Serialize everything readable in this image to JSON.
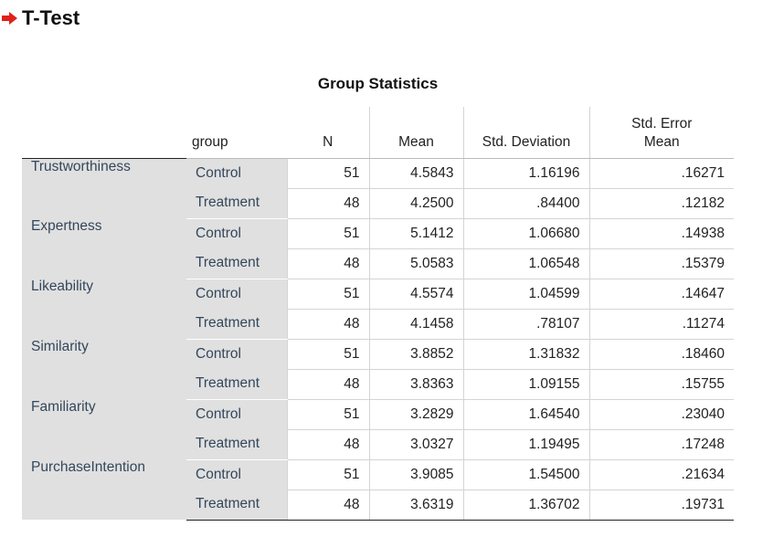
{
  "heading": {
    "title": "T-Test",
    "arrow_icon": "right-arrow-icon",
    "arrow_color": "#e0201a"
  },
  "table": {
    "title": "Group Statistics",
    "columns": {
      "group": "group",
      "n": "N",
      "mean": "Mean",
      "sd": "Std. Deviation",
      "se_line1": "Std. Error",
      "se_line2": "Mean"
    },
    "variables": [
      {
        "name": "Trustworthiness",
        "rows": [
          {
            "group": "Control",
            "n": "51",
            "mean": "4.5843",
            "sd": "1.16196",
            "se": ".16271"
          },
          {
            "group": "Treatment",
            "n": "48",
            "mean": "4.2500",
            "sd": ".84400",
            "se": ".12182"
          }
        ]
      },
      {
        "name": "Expertness",
        "rows": [
          {
            "group": "Control",
            "n": "51",
            "mean": "5.1412",
            "sd": "1.06680",
            "se": ".14938"
          },
          {
            "group": "Treatment",
            "n": "48",
            "mean": "5.0583",
            "sd": "1.06548",
            "se": ".15379"
          }
        ]
      },
      {
        "name": "Likeability",
        "rows": [
          {
            "group": "Control",
            "n": "51",
            "mean": "4.5574",
            "sd": "1.04599",
            "se": ".14647"
          },
          {
            "group": "Treatment",
            "n": "48",
            "mean": "4.1458",
            "sd": ".78107",
            "se": ".11274"
          }
        ]
      },
      {
        "name": "Similarity",
        "rows": [
          {
            "group": "Control",
            "n": "51",
            "mean": "3.8852",
            "sd": "1.31832",
            "se": ".18460"
          },
          {
            "group": "Treatment",
            "n": "48",
            "mean": "3.8363",
            "sd": "1.09155",
            "se": ".15755"
          }
        ]
      },
      {
        "name": "Familiarity",
        "rows": [
          {
            "group": "Control",
            "n": "51",
            "mean": "3.2829",
            "sd": "1.64540",
            "se": ".23040"
          },
          {
            "group": "Treatment",
            "n": "48",
            "mean": "3.0327",
            "sd": "1.19495",
            "se": ".17248"
          }
        ]
      },
      {
        "name": "PurchaseIntention",
        "rows": [
          {
            "group": "Control",
            "n": "51",
            "mean": "3.9085",
            "sd": "1.54500",
            "se": ".21634"
          },
          {
            "group": "Treatment",
            "n": "48",
            "mean": "3.6319",
            "sd": "1.36702",
            "se": ".19731"
          }
        ]
      }
    ]
  }
}
